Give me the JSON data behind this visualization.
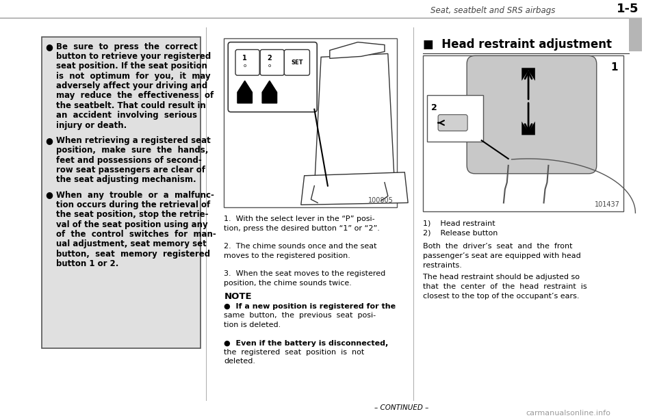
{
  "bg_color": "#ffffff",
  "header_text": "Seat, seatbelt and SRS airbags",
  "header_page": "1-5",
  "tab_color": "#b0b0b0",
  "left_box_bg": "#e8e8e8",
  "bullet1_lines": [
    "Be  sure  to  press  the  correct",
    "button to retrieve your registered",
    "seat position. If the seat position",
    "is  not  optimum  for  you,  it  may",
    "adversely affect your driving and",
    "may  reduce  the  effectiveness  of",
    "the seatbelt. That could result in",
    "an  accident  involving  serious",
    "injury or death."
  ],
  "bullet2_lines": [
    "When retrieving a registered seat",
    "position,  make  sure  the  hands,",
    "feet and possessions of second-",
    "row seat passengers are clear of",
    "the seat adjusting mechanism."
  ],
  "bullet3_lines": [
    "When  any  trouble  or  a  malfunc-",
    "tion occurs during the retrieval of",
    "the seat position, stop the retrie-",
    "val of the seat position using any",
    "of  the  control  switches  for  man-",
    "ual adjustment, seat memory set",
    "button,  seat  memory  registered",
    "button 1 or 2."
  ],
  "center_caption1": "1.  With the select lever in the “P” posi-",
  "center_caption1b": "tion, press the desired button “1” or “2”.",
  "center_caption2": "2.  The chime sounds once and the seat",
  "center_caption2b": "moves to the registered position.",
  "center_caption3": "3.  When the seat moves to the registered",
  "center_caption3b": "position, the chime sounds twice.",
  "note_title": "NOTE",
  "note1a": "●  If a new position is registered for the",
  "note1b": "same  button,  the  previous  seat  posi-",
  "note1c": "tion is deleted.",
  "note2a": "●  Even if the battery is disconnected,",
  "note2b": "the  registered  seat  position  is  not",
  "note2c": "deleted.",
  "right_head_title": "■  Head restraint adjustment",
  "caption_1_head": "1)    Head restraint",
  "caption_2_head": "2)    Release button",
  "right_para1a": "Both  the  driver’s  seat  and  the  front",
  "right_para1b": "passenger’s seat are equipped with head",
  "right_para1c": "restraints.",
  "right_para2a": "The head restraint should be adjusted so",
  "right_para2b": "that  the  center  of  the  head  restraint  is",
  "right_para2c": "closest to the top of the occupant’s ears.",
  "continued_text": "– CONTINUED –",
  "watermark": "carmanualsonline.info",
  "img_code1": "100805",
  "img_code2": "101437"
}
